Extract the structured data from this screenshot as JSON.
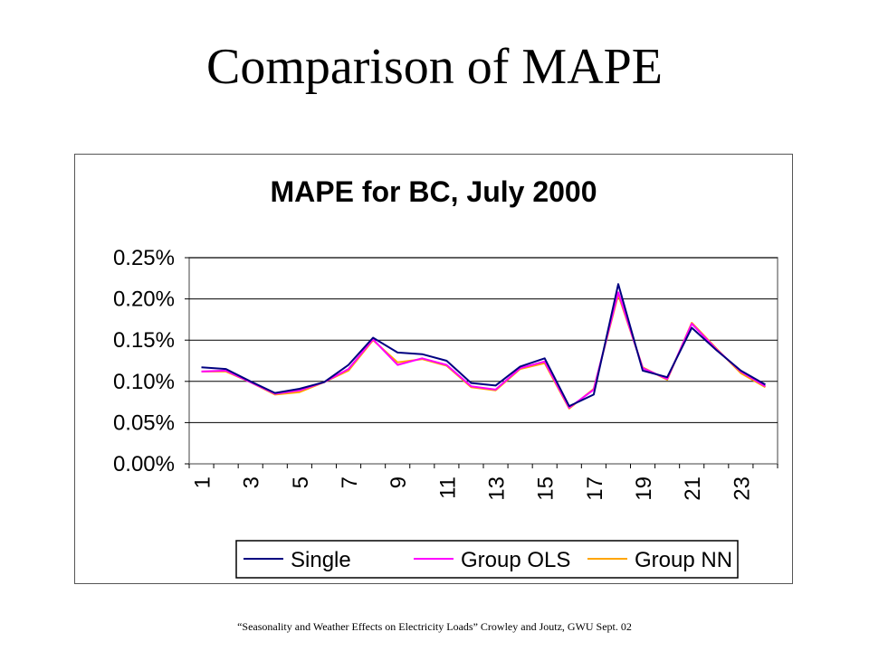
{
  "slide": {
    "title": "Comparison of MAPE",
    "footer": "“Seasonality and Weather Effects on Electricity Loads” Crowley and Joutz, GWU Sept. 02"
  },
  "chart_data": {
    "type": "line",
    "title": "MAPE for BC, July 2000",
    "xlabel": "",
    "ylabel": "",
    "x": [
      1,
      2,
      3,
      4,
      5,
      6,
      7,
      8,
      9,
      10,
      11,
      12,
      13,
      14,
      15,
      16,
      17,
      18,
      19,
      20,
      21,
      22,
      23,
      24
    ],
    "x_tick_labels": [
      "1",
      "3",
      "5",
      "7",
      "9",
      "11",
      "13",
      "15",
      "17",
      "19",
      "21",
      "23"
    ],
    "y_ticks": [
      0.0,
      0.05,
      0.1,
      0.15,
      0.2,
      0.25
    ],
    "y_tick_labels": [
      "0.00%",
      "0.05%",
      "0.10%",
      "0.15%",
      "0.20%",
      "0.25%"
    ],
    "ylim": [
      0,
      0.25
    ],
    "grid": "horizontal",
    "legend_position": "bottom",
    "series": [
      {
        "name": "Single",
        "color": "#000080",
        "values": [
          0.117,
          0.115,
          0.1,
          0.086,
          0.091,
          0.099,
          0.12,
          0.153,
          0.135,
          0.133,
          0.125,
          0.098,
          0.095,
          0.118,
          0.128,
          0.07,
          0.084,
          0.218,
          0.113,
          0.105,
          0.165,
          0.138,
          0.113,
          0.096
        ]
      },
      {
        "name": "Group OLS",
        "color": "#ff00ff",
        "values": [
          0.112,
          0.113,
          0.099,
          0.085,
          0.089,
          0.099,
          0.115,
          0.151,
          0.12,
          0.128,
          0.12,
          0.094,
          0.09,
          0.116,
          0.124,
          0.068,
          0.09,
          0.208,
          0.116,
          0.103,
          0.17,
          0.139,
          0.112,
          0.094
        ]
      },
      {
        "name": "Group NN",
        "color": "#ffa500",
        "values": [
          0.112,
          0.112,
          0.099,
          0.084,
          0.087,
          0.099,
          0.113,
          0.15,
          0.123,
          0.127,
          0.119,
          0.093,
          0.089,
          0.115,
          0.122,
          0.067,
          0.091,
          0.205,
          0.117,
          0.102,
          0.171,
          0.14,
          0.11,
          0.093
        ]
      }
    ]
  }
}
